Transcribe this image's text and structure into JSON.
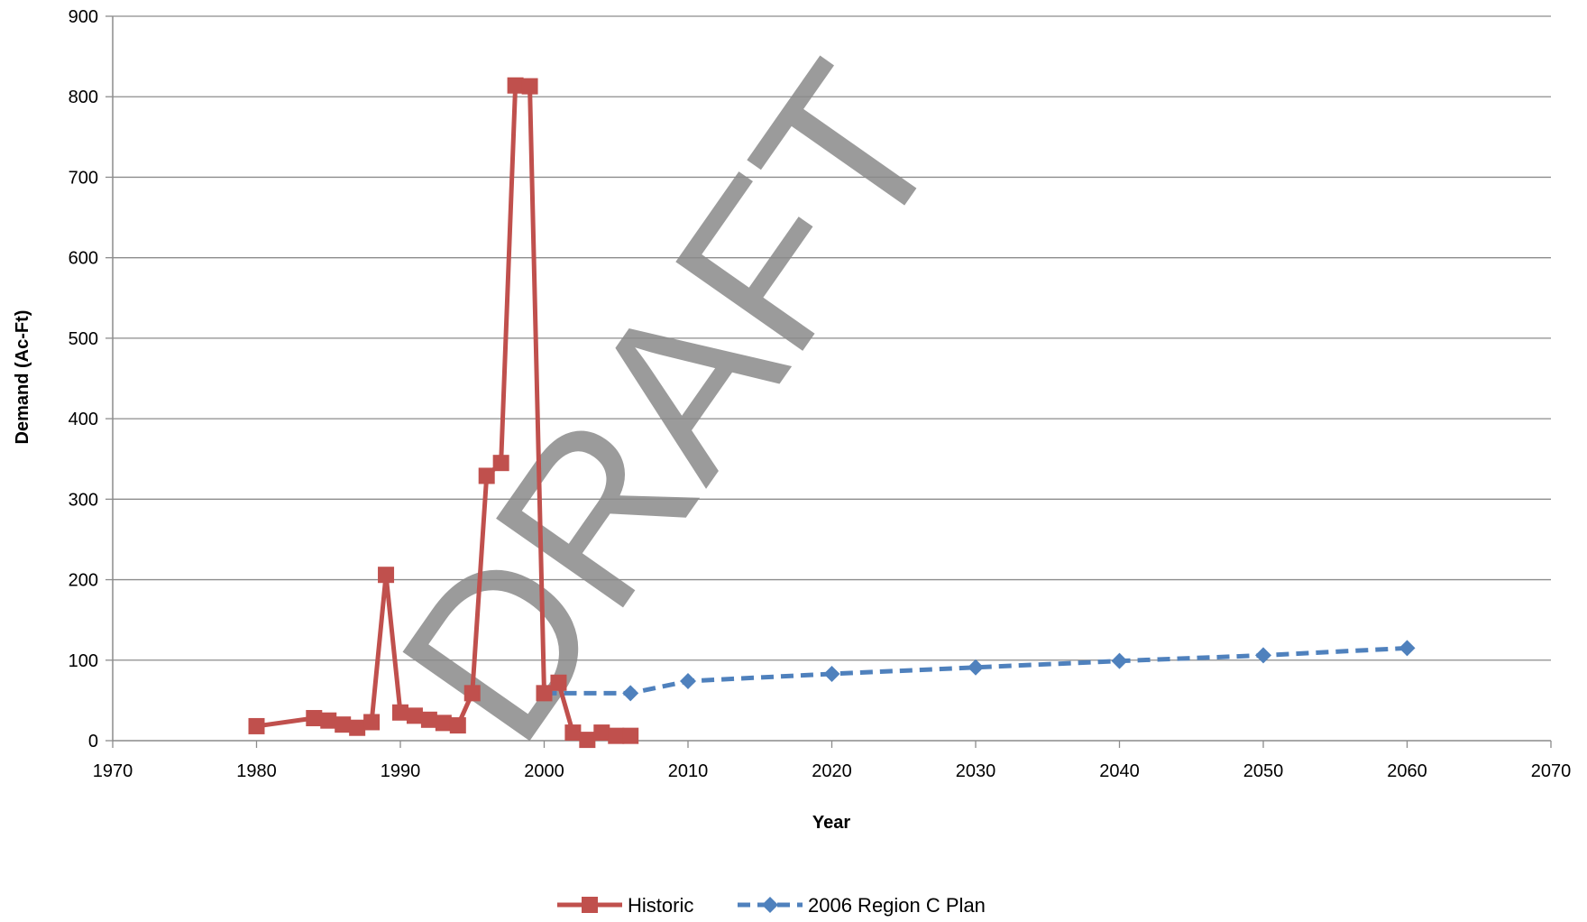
{
  "chart_data": {
    "type": "line",
    "title": "",
    "xlabel": "Year",
    "ylabel": "Demand (Ac-Ft)",
    "xlim": [
      1970,
      2070
    ],
    "ylim": [
      0,
      900
    ],
    "x_ticks": [
      1970,
      1980,
      1990,
      2000,
      2010,
      2020,
      2030,
      2040,
      2050,
      2060,
      2070
    ],
    "y_ticks": [
      0,
      100,
      200,
      300,
      400,
      500,
      600,
      700,
      800,
      900
    ],
    "grid": "horizontal",
    "legend_position": "bottom",
    "series": [
      {
        "name": "Historic",
        "color": "#c0504d",
        "marker": "square",
        "line_style": "solid",
        "x": [
          1980,
          1984,
          1985,
          1986,
          1987,
          1988,
          1989,
          1990,
          1991,
          1992,
          1993,
          1994,
          1995,
          1996,
          1997,
          1998,
          1999,
          2000,
          2001,
          2002,
          2003,
          2004,
          2005,
          2006
        ],
        "y": [
          18,
          28,
          25,
          20,
          16,
          23,
          206,
          35,
          31,
          26,
          22,
          19,
          59,
          329,
          345,
          814,
          813,
          59,
          72,
          10,
          1,
          10,
          6,
          6
        ]
      },
      {
        "name": "2006 Region C Plan",
        "color": "#4f81bd",
        "marker": "diamond",
        "line_style": "dashed",
        "x": [
          2000,
          2006,
          2010,
          2020,
          2030,
          2040,
          2050,
          2060
        ],
        "y": [
          59,
          59,
          74,
          83,
          91,
          99,
          106,
          115
        ]
      }
    ],
    "watermark": "DRAFT"
  }
}
